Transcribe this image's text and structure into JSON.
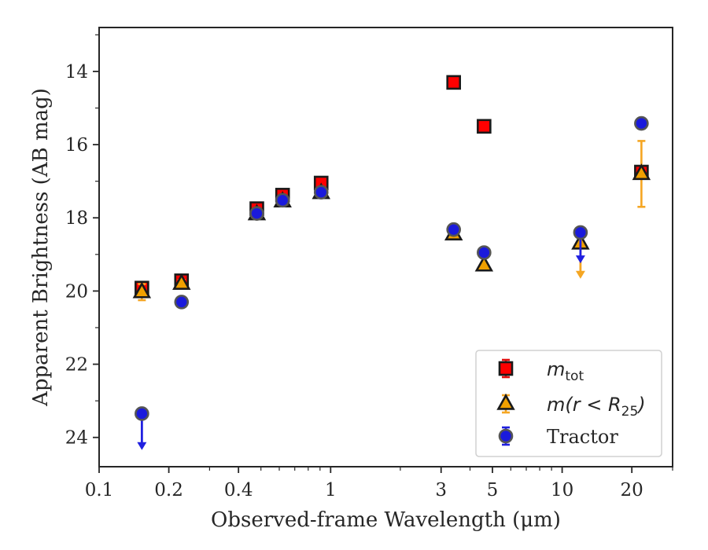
{
  "chart_data": {
    "type": "scatter",
    "xlabel": "Observed-frame Wavelength (μm)",
    "ylabel": "Apparent Brightness (AB mag)",
    "xscale": "log",
    "xlim": [
      0.1,
      30
    ],
    "ylim": [
      24.8,
      12.8
    ],
    "y_inverted": true,
    "x_ticks": [
      {
        "value": 0.1,
        "label": "0.1"
      },
      {
        "value": 0.2,
        "label": "0.2"
      },
      {
        "value": 0.4,
        "label": "0.4"
      },
      {
        "value": 1,
        "label": "1"
      },
      {
        "value": 3,
        "label": "3"
      },
      {
        "value": 5,
        "label": "5"
      },
      {
        "value": 10,
        "label": "10"
      },
      {
        "value": 20,
        "label": "20"
      }
    ],
    "y_ticks": [
      {
        "value": 14,
        "label": "14"
      },
      {
        "value": 16,
        "label": "16"
      },
      {
        "value": 18,
        "label": "18"
      },
      {
        "value": 20,
        "label": "20"
      },
      {
        "value": 22,
        "label": "22"
      },
      {
        "value": 24,
        "label": "24"
      }
    ],
    "grid": false,
    "legend_position": "lower-right",
    "series": [
      {
        "name": "m_tot",
        "legend_main": "m",
        "legend_sub": "tot",
        "marker": "square",
        "fill": "#ff0000",
        "edge": "#1a1a1a",
        "errcolor": "#e01010",
        "points": [
          {
            "x": 0.153,
            "y": 19.92,
            "err": 0.1
          },
          {
            "x": 0.227,
            "y": 19.72,
            "err": 0.08
          },
          {
            "x": 0.48,
            "y": 17.75,
            "err": 0.08
          },
          {
            "x": 0.62,
            "y": 17.38,
            "err": 0.08
          },
          {
            "x": 0.91,
            "y": 17.05,
            "err": 0.08
          },
          {
            "x": 3.4,
            "y": 14.3,
            "err": 0.05
          },
          {
            "x": 4.6,
            "y": 15.5,
            "err": 0.05
          },
          {
            "x": 22,
            "y": 16.75,
            "err": 0.08
          }
        ]
      },
      {
        "name": "m(r < R25)",
        "legend_main": "m(r < R",
        "legend_sub": "25",
        "legend_close": ")",
        "marker": "triangle",
        "fill": "#f0a000",
        "edge": "#1a1a1a",
        "errcolor": "#f5a623",
        "points": [
          {
            "x": 0.153,
            "y": 20.03,
            "err": 0.22
          },
          {
            "x": 0.227,
            "y": 19.8,
            "err": 0.1
          },
          {
            "x": 0.48,
            "y": 17.9,
            "err": 0.06
          },
          {
            "x": 0.62,
            "y": 17.55,
            "err": 0.06
          },
          {
            "x": 0.91,
            "y": 17.32,
            "err": 0.06
          },
          {
            "x": 3.4,
            "y": 18.45,
            "err": 0.05
          },
          {
            "x": 4.6,
            "y": 19.3,
            "err": 0.05
          },
          {
            "x": 12,
            "y": 18.7,
            "err": 0.05,
            "upper_limit": true,
            "arrow_to": 19.62
          },
          {
            "x": 22,
            "y": 16.8,
            "err": 0.9
          }
        ]
      },
      {
        "name": "Tractor",
        "legend_main": "Tractor",
        "marker": "circle",
        "fill": "#1a1adc",
        "edge": "#555555",
        "errcolor": "#2020e0",
        "points": [
          {
            "x": 0.153,
            "y": 23.35,
            "err": 0.05,
            "upper_limit": true,
            "arrow_to": 24.3
          },
          {
            "x": 0.227,
            "y": 20.3,
            "err": 0.06
          },
          {
            "x": 0.48,
            "y": 17.88,
            "err": 0.05
          },
          {
            "x": 0.62,
            "y": 17.52,
            "err": 0.05
          },
          {
            "x": 0.91,
            "y": 17.3,
            "err": 0.05
          },
          {
            "x": 3.4,
            "y": 18.32,
            "err": 0.05
          },
          {
            "x": 4.6,
            "y": 18.95,
            "err": 0.05
          },
          {
            "x": 12,
            "y": 18.4,
            "err": 0.05,
            "upper_limit": true,
            "arrow_to": 19.2
          },
          {
            "x": 22,
            "y": 15.42,
            "err": 0.05
          }
        ]
      }
    ]
  }
}
